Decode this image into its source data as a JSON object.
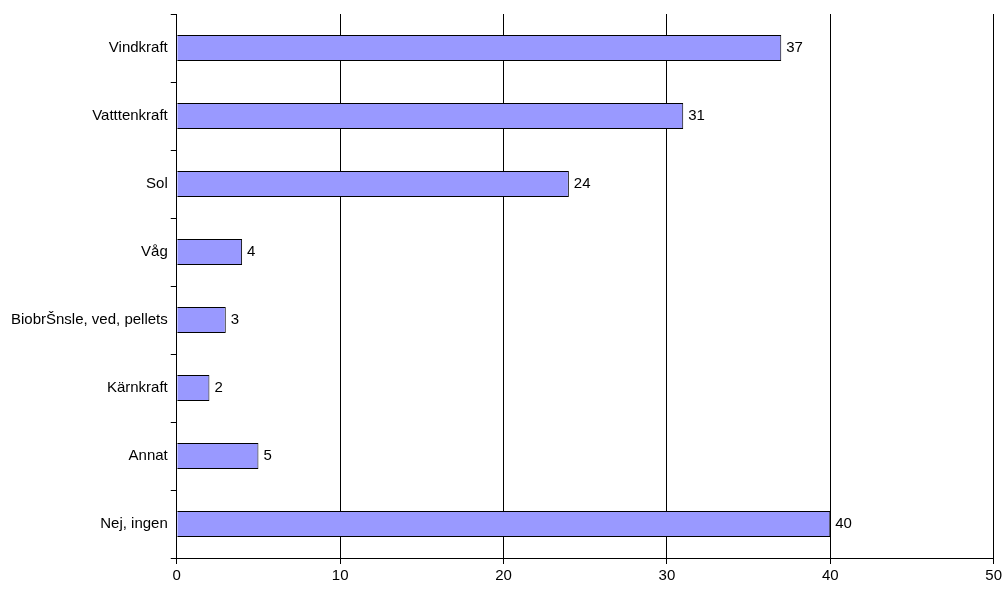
{
  "chart_data": {
    "type": "bar",
    "orientation": "horizontal",
    "categories": [
      "Vindkraft",
      "Vatttenkraft",
      "Sol",
      "Våg",
      "BiobrŠnsle, ved, pellets",
      "Kärnkraft",
      "Annat",
      "Nej, ingen"
    ],
    "values": [
      37,
      31,
      24,
      4,
      3,
      2,
      5,
      40
    ],
    "color": "#9999ff",
    "xlim": [
      0,
      50
    ],
    "xticks": [
      0,
      10,
      20,
      30,
      40,
      50
    ],
    "grid": "x",
    "data_labels": true,
    "legend": false
  }
}
